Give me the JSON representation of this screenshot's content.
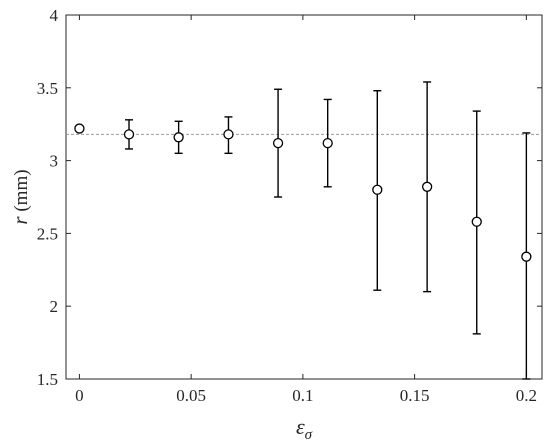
{
  "chart_data": {
    "type": "scatter",
    "title": "",
    "xlabel": "ε",
    "xlabel_sub": "σ",
    "ylabel_var": "r",
    "ylabel_unit": " (mm)",
    "xlim": [
      -0.006,
      0.207
    ],
    "ylim": [
      1.5,
      4
    ],
    "xticks": [
      0,
      0.05,
      0.1,
      0.15,
      0.2
    ],
    "xtick_labels": [
      "0",
      "0.05",
      "0.1",
      "0.15",
      "0.2"
    ],
    "yticks": [
      1.5,
      2,
      2.5,
      3,
      3.5,
      4
    ],
    "ytick_labels": [
      "1.5",
      "2",
      "2.5",
      "3",
      "3.5",
      "4"
    ],
    "grid": false,
    "reference_line": {
      "y": 3.18,
      "style": "dashed",
      "color": "#999999"
    },
    "series": [
      {
        "marker": "circle-open",
        "color": "#000000",
        "x": [
          0,
          0.0222,
          0.0444,
          0.0667,
          0.0889,
          0.1111,
          0.1333,
          0.1556,
          0.1778,
          0.2
        ],
        "y": [
          3.22,
          3.18,
          3.16,
          3.18,
          3.12,
          3.12,
          2.8,
          2.82,
          2.58,
          2.34
        ],
        "y_low": [
          3.21,
          3.08,
          3.05,
          3.05,
          2.75,
          2.82,
          2.11,
          2.1,
          1.81,
          1.5
        ],
        "y_high": [
          3.23,
          3.28,
          3.27,
          3.3,
          3.49,
          3.42,
          3.48,
          3.54,
          3.34,
          3.19
        ]
      }
    ]
  }
}
